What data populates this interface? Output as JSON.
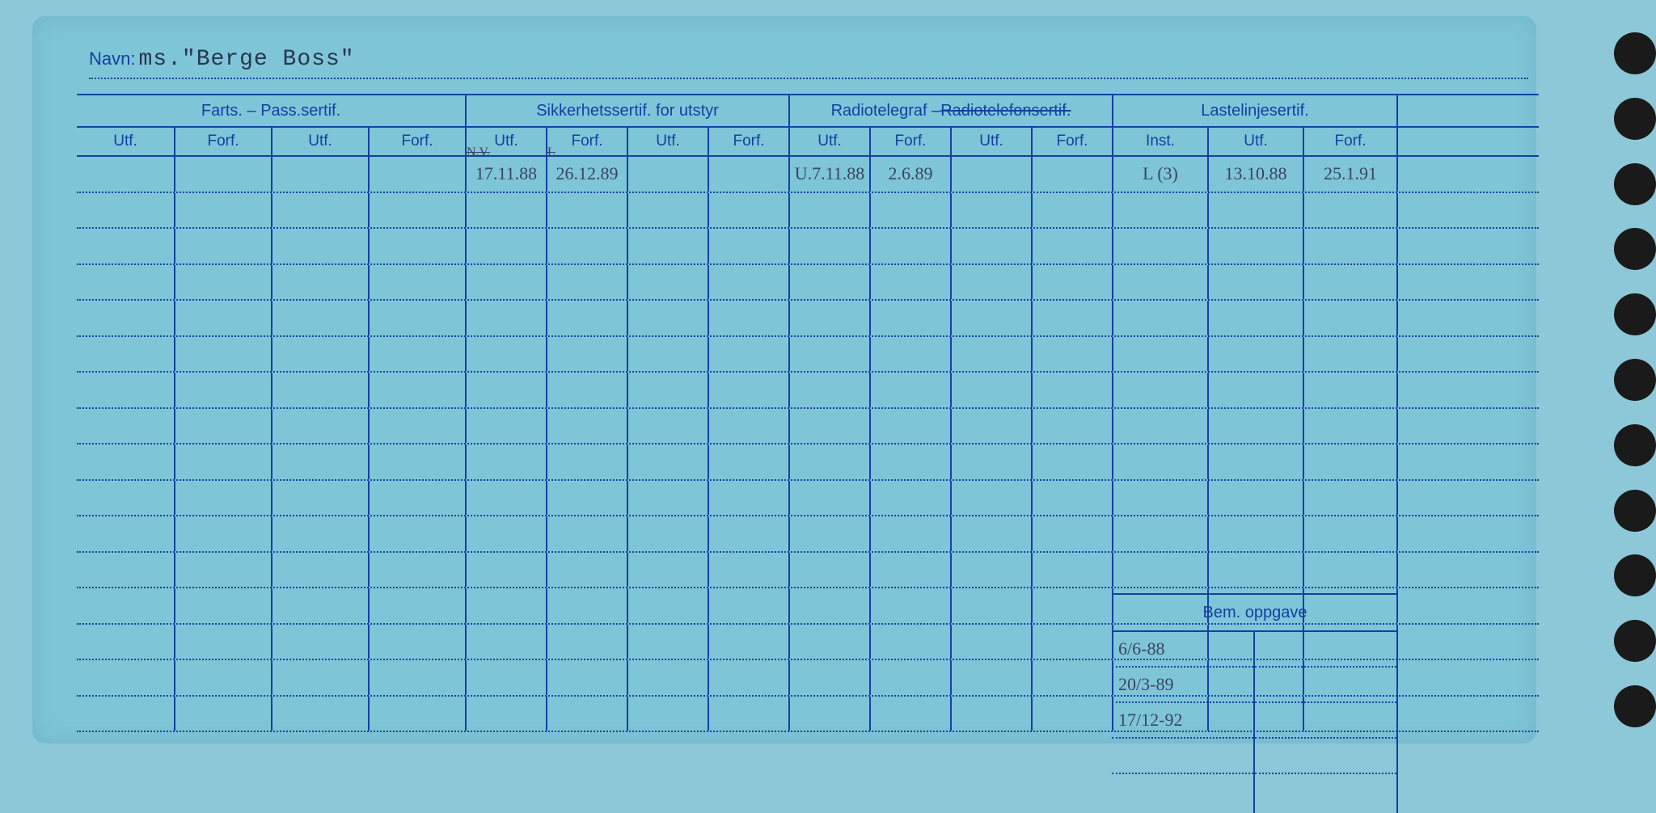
{
  "colors": {
    "card_bg": "#7ec5d8",
    "page_bg": "#8dc8d8",
    "line": "#1440a0",
    "ink": "#3a4560",
    "hole": "#1a1a1a"
  },
  "navn": {
    "label": "Navn:",
    "value": "ms.\"Berge Boss\""
  },
  "groups": [
    {
      "label": "Farts. – Pass.sertif.",
      "cols": [
        "Utf.",
        "Forf.",
        "Utf.",
        "Forf."
      ]
    },
    {
      "label": "Sikkerhetssertif. for utstyr",
      "cols": [
        "Utf.",
        "Forf.",
        "Utf.",
        "Forf."
      ]
    },
    {
      "label_html": "Radiotelegraf – Radiotelefonsertif.",
      "strike_part": "Radiotelefonsertif.",
      "prefix": "Radiotelegraf – ",
      "cols": [
        "Utf.",
        "Forf.",
        "Utf.",
        "Forf."
      ]
    },
    {
      "label": "Lastelinjesertif.",
      "cols": [
        "Inst.",
        "Utf.",
        "Forf."
      ]
    }
  ],
  "row1": {
    "c5": "17.11.88",
    "c5_over": "N.V.",
    "c6": "26.12.89",
    "c6_over": "L",
    "c9": "U.7.11.88",
    "c10": "2.6.89",
    "c13": "L (3)",
    "c14": "13.10.88",
    "c15": "25.1.91"
  },
  "bem": {
    "label": "Bem. oppgave",
    "entries": [
      "6/6-88",
      "20/3-89",
      "17/12-92"
    ]
  },
  "holes_count": 11
}
